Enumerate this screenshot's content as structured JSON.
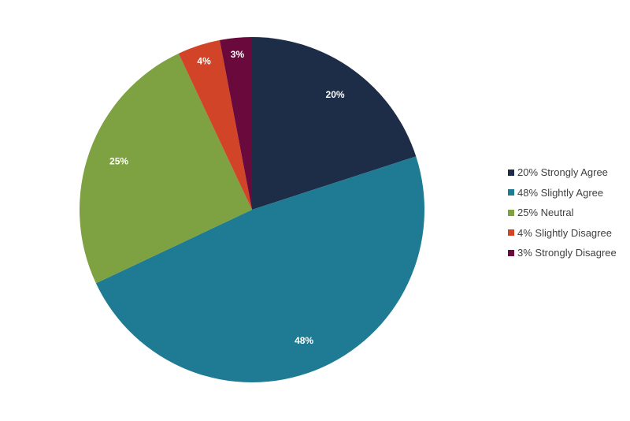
{
  "chart_data": {
    "type": "pie",
    "start_angle_deg": 0,
    "direction": "clockwise",
    "slices": [
      {
        "label": "Strongly Agree",
        "value": 20,
        "data_label": "20%",
        "legend_label": "20% Strongly Agree",
        "color": "#1d2d48"
      },
      {
        "label": "Slightly Agree",
        "value": 48,
        "data_label": "48%",
        "legend_label": "48% Slightly Agree",
        "color": "#1e7b93"
      },
      {
        "label": "Neutral",
        "value": 25,
        "data_label": "25%",
        "legend_label": "25% Neutral",
        "color": "#7ea241"
      },
      {
        "label": "Slightly Disagree",
        "value": 4,
        "data_label": "4%",
        "legend_label": "4% Slightly Disagree",
        "color": "#d24428"
      },
      {
        "label": "Strongly Disagree",
        "value": 3,
        "data_label": "3%",
        "legend_label": "3% Strongly Disagree",
        "color": "#6a0a3c"
      }
    ],
    "legend_position": "right"
  }
}
